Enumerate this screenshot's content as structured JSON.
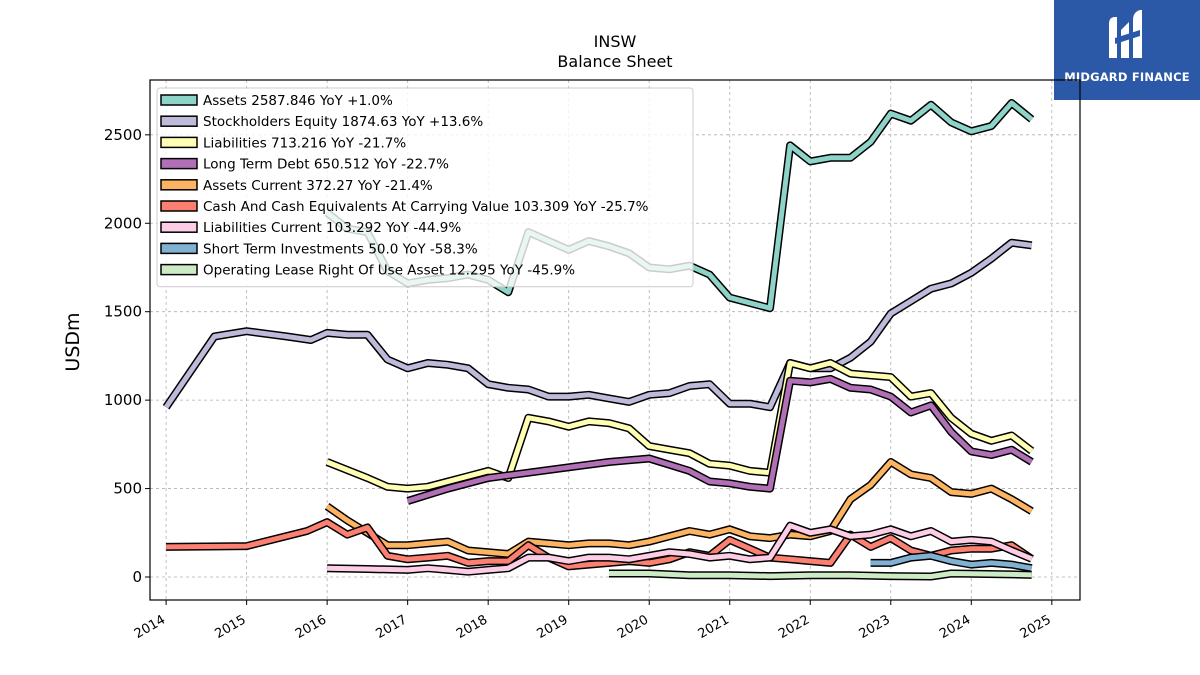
{
  "brand": {
    "name": "MIDGARD FINANCE",
    "bg_color": "#2c58a8"
  },
  "chart_data": {
    "type": "line",
    "title": "INSW",
    "subtitle": "Balance  Sheet",
    "ylabel": "USDm",
    "xlabel": "",
    "xlim": [
      2013.8,
      2025.35
    ],
    "ylim": [
      -130,
      2810
    ],
    "yticks": [
      0,
      500,
      1000,
      1500,
      2000,
      2500
    ],
    "xticks": [
      2014,
      2015,
      2016,
      2017,
      2018,
      2019,
      2020,
      2021,
      2022,
      2023,
      2024,
      2025
    ],
    "grid": true,
    "legend_position": "top-left",
    "series": [
      {
        "name": "Assets",
        "legend": "Assets  2587.846 YoY +1.0%",
        "color": "#8dd3c7",
        "points": [
          [
            2016.0,
            2060
          ],
          [
            2016.25,
            1970
          ],
          [
            2016.5,
            1950
          ],
          [
            2016.75,
            1730
          ],
          [
            2017.0,
            1660
          ],
          [
            2017.25,
            1680
          ],
          [
            2017.5,
            1690
          ],
          [
            2017.75,
            1710
          ],
          [
            2018.0,
            1680
          ],
          [
            2018.25,
            1610
          ],
          [
            2018.5,
            1950
          ],
          [
            2018.75,
            1900
          ],
          [
            2019.0,
            1850
          ],
          [
            2019.25,
            1900
          ],
          [
            2019.5,
            1870
          ],
          [
            2019.75,
            1830
          ],
          [
            2020.0,
            1750
          ],
          [
            2020.25,
            1740
          ],
          [
            2020.5,
            1760
          ],
          [
            2020.75,
            1710
          ],
          [
            2021.0,
            1580
          ],
          [
            2021.25,
            1550
          ],
          [
            2021.5,
            1520
          ],
          [
            2021.75,
            2440
          ],
          [
            2022.0,
            2350
          ],
          [
            2022.25,
            2370
          ],
          [
            2022.5,
            2370
          ],
          [
            2022.75,
            2460
          ],
          [
            2023.0,
            2620
          ],
          [
            2023.25,
            2580
          ],
          [
            2023.5,
            2670
          ],
          [
            2023.75,
            2570
          ],
          [
            2024.0,
            2520
          ],
          [
            2024.25,
            2550
          ],
          [
            2024.5,
            2680
          ],
          [
            2024.75,
            2588
          ]
        ]
      },
      {
        "name": "Stockholders Equity",
        "legend": "Stockholders Equity  1874.63 YoY +13.6%",
        "color": "#bebada",
        "points": [
          [
            2014.0,
            960
          ],
          [
            2014.6,
            1360
          ],
          [
            2015.0,
            1390
          ],
          [
            2015.5,
            1360
          ],
          [
            2015.8,
            1340
          ],
          [
            2016.0,
            1380
          ],
          [
            2016.25,
            1370
          ],
          [
            2016.5,
            1370
          ],
          [
            2016.75,
            1230
          ],
          [
            2017.0,
            1180
          ],
          [
            2017.25,
            1210
          ],
          [
            2017.5,
            1200
          ],
          [
            2017.75,
            1180
          ],
          [
            2018.0,
            1090
          ],
          [
            2018.25,
            1070
          ],
          [
            2018.5,
            1060
          ],
          [
            2018.75,
            1020
          ],
          [
            2019.0,
            1020
          ],
          [
            2019.25,
            1030
          ],
          [
            2019.5,
            1010
          ],
          [
            2019.75,
            990
          ],
          [
            2020.0,
            1030
          ],
          [
            2020.25,
            1040
          ],
          [
            2020.5,
            1080
          ],
          [
            2020.75,
            1090
          ],
          [
            2021.0,
            980
          ],
          [
            2021.25,
            980
          ],
          [
            2021.5,
            960
          ],
          [
            2021.75,
            1210
          ],
          [
            2022.0,
            1180
          ],
          [
            2022.25,
            1180
          ],
          [
            2022.5,
            1240
          ],
          [
            2022.75,
            1330
          ],
          [
            2023.0,
            1490
          ],
          [
            2023.25,
            1560
          ],
          [
            2023.5,
            1630
          ],
          [
            2023.75,
            1660
          ],
          [
            2024.0,
            1720
          ],
          [
            2024.25,
            1800
          ],
          [
            2024.5,
            1890
          ],
          [
            2024.75,
            1875
          ]
        ]
      },
      {
        "name": "Liabilities",
        "legend": "Liabilities  713.216 YoY -21.7%",
        "color": "#ffffb3",
        "points": [
          [
            2016.0,
            650
          ],
          [
            2016.5,
            560
          ],
          [
            2016.75,
            510
          ],
          [
            2017.0,
            500
          ],
          [
            2017.25,
            510
          ],
          [
            2017.5,
            540
          ],
          [
            2017.75,
            570
          ],
          [
            2018.0,
            600
          ],
          [
            2018.25,
            560
          ],
          [
            2018.5,
            900
          ],
          [
            2018.75,
            880
          ],
          [
            2019.0,
            850
          ],
          [
            2019.25,
            880
          ],
          [
            2019.5,
            870
          ],
          [
            2019.75,
            840
          ],
          [
            2020.0,
            740
          ],
          [
            2020.25,
            720
          ],
          [
            2020.5,
            700
          ],
          [
            2020.75,
            640
          ],
          [
            2021.0,
            630
          ],
          [
            2021.25,
            600
          ],
          [
            2021.5,
            590
          ],
          [
            2021.75,
            1210
          ],
          [
            2022.0,
            1180
          ],
          [
            2022.25,
            1210
          ],
          [
            2022.5,
            1150
          ],
          [
            2022.75,
            1140
          ],
          [
            2023.0,
            1130
          ],
          [
            2023.25,
            1020
          ],
          [
            2023.5,
            1040
          ],
          [
            2023.75,
            900
          ],
          [
            2024.0,
            810
          ],
          [
            2024.25,
            770
          ],
          [
            2024.5,
            800
          ],
          [
            2024.75,
            713
          ]
        ]
      },
      {
        "name": "Long Term Debt",
        "legend": "Long Term Debt  650.512 YoY -22.7%",
        "color": "#b16fb5",
        "points": [
          [
            2017.0,
            430
          ],
          [
            2017.5,
            500
          ],
          [
            2018.0,
            560
          ],
          [
            2018.5,
            590
          ],
          [
            2019.0,
            620
          ],
          [
            2019.5,
            650
          ],
          [
            2020.0,
            670
          ],
          [
            2020.5,
            600
          ],
          [
            2020.75,
            540
          ],
          [
            2021.0,
            530
          ],
          [
            2021.25,
            510
          ],
          [
            2021.5,
            500
          ],
          [
            2021.75,
            1110
          ],
          [
            2022.0,
            1100
          ],
          [
            2022.25,
            1120
          ],
          [
            2022.5,
            1070
          ],
          [
            2022.75,
            1060
          ],
          [
            2023.0,
            1020
          ],
          [
            2023.25,
            930
          ],
          [
            2023.5,
            970
          ],
          [
            2023.75,
            820
          ],
          [
            2024.0,
            710
          ],
          [
            2024.25,
            690
          ],
          [
            2024.5,
            720
          ],
          [
            2024.75,
            651
          ]
        ]
      },
      {
        "name": "Assets Current",
        "legend": "Assets Current  372.27 YoY -21.4%",
        "color": "#fdb462",
        "points": [
          [
            2016.0,
            400
          ],
          [
            2016.25,
            320
          ],
          [
            2016.5,
            250
          ],
          [
            2016.75,
            180
          ],
          [
            2017.0,
            180
          ],
          [
            2017.25,
            190
          ],
          [
            2017.5,
            200
          ],
          [
            2017.75,
            150
          ],
          [
            2018.0,
            140
          ],
          [
            2018.25,
            130
          ],
          [
            2018.5,
            200
          ],
          [
            2018.75,
            190
          ],
          [
            2019.0,
            180
          ],
          [
            2019.25,
            190
          ],
          [
            2019.5,
            190
          ],
          [
            2019.75,
            180
          ],
          [
            2020.0,
            200
          ],
          [
            2020.25,
            230
          ],
          [
            2020.5,
            260
          ],
          [
            2020.75,
            240
          ],
          [
            2021.0,
            270
          ],
          [
            2021.25,
            230
          ],
          [
            2021.5,
            220
          ],
          [
            2021.75,
            240
          ],
          [
            2022.0,
            230
          ],
          [
            2022.25,
            260
          ],
          [
            2022.5,
            440
          ],
          [
            2022.75,
            520
          ],
          [
            2023.0,
            650
          ],
          [
            2023.25,
            580
          ],
          [
            2023.5,
            560
          ],
          [
            2023.75,
            480
          ],
          [
            2024.0,
            470
          ],
          [
            2024.25,
            500
          ],
          [
            2024.5,
            440
          ],
          [
            2024.75,
            372
          ]
        ]
      },
      {
        "name": "Cash And Cash Equivalents At Carrying Value",
        "legend": "Cash And Cash Equivalents At Carrying Value  103.309 YoY -25.7%",
        "color": "#fb8072",
        "points": [
          [
            2014.0,
            170
          ],
          [
            2015.0,
            175
          ],
          [
            2015.75,
            260
          ],
          [
            2016.0,
            310
          ],
          [
            2016.25,
            240
          ],
          [
            2016.5,
            280
          ],
          [
            2016.75,
            120
          ],
          [
            2017.0,
            100
          ],
          [
            2017.25,
            110
          ],
          [
            2017.5,
            120
          ],
          [
            2017.75,
            80
          ],
          [
            2018.0,
            90
          ],
          [
            2018.25,
            90
          ],
          [
            2018.5,
            180
          ],
          [
            2018.75,
            110
          ],
          [
            2019.0,
            60
          ],
          [
            2019.25,
            70
          ],
          [
            2019.5,
            80
          ],
          [
            2019.75,
            90
          ],
          [
            2020.0,
            80
          ],
          [
            2020.25,
            100
          ],
          [
            2020.5,
            140
          ],
          [
            2020.75,
            120
          ],
          [
            2021.0,
            210
          ],
          [
            2021.25,
            160
          ],
          [
            2021.5,
            110
          ],
          [
            2021.75,
            100
          ],
          [
            2022.0,
            90
          ],
          [
            2022.25,
            80
          ],
          [
            2022.5,
            240
          ],
          [
            2022.75,
            170
          ],
          [
            2023.0,
            220
          ],
          [
            2023.25,
            150
          ],
          [
            2023.5,
            120
          ],
          [
            2023.75,
            150
          ],
          [
            2024.0,
            160
          ],
          [
            2024.25,
            160
          ],
          [
            2024.5,
            180
          ],
          [
            2024.75,
            103
          ]
        ]
      },
      {
        "name": "Liabilities Current",
        "legend": "Liabilities Current  103.292 YoY -44.9%",
        "color": "#fccde5",
        "points": [
          [
            2016.0,
            50
          ],
          [
            2016.5,
            45
          ],
          [
            2017.0,
            40
          ],
          [
            2017.25,
            50
          ],
          [
            2017.5,
            40
          ],
          [
            2017.75,
            30
          ],
          [
            2018.0,
            40
          ],
          [
            2018.25,
            50
          ],
          [
            2018.5,
            110
          ],
          [
            2018.75,
            110
          ],
          [
            2019.0,
            90
          ],
          [
            2019.25,
            110
          ],
          [
            2019.5,
            110
          ],
          [
            2019.75,
            100
          ],
          [
            2020.0,
            120
          ],
          [
            2020.25,
            140
          ],
          [
            2020.5,
            130
          ],
          [
            2020.75,
            110
          ],
          [
            2021.0,
            120
          ],
          [
            2021.25,
            100
          ],
          [
            2021.5,
            110
          ],
          [
            2021.75,
            290
          ],
          [
            2022.0,
            250
          ],
          [
            2022.25,
            270
          ],
          [
            2022.5,
            230
          ],
          [
            2022.75,
            240
          ],
          [
            2023.0,
            270
          ],
          [
            2023.25,
            230
          ],
          [
            2023.5,
            260
          ],
          [
            2023.75,
            200
          ],
          [
            2024.0,
            210
          ],
          [
            2024.25,
            200
          ],
          [
            2024.5,
            150
          ],
          [
            2024.75,
            103
          ]
        ]
      },
      {
        "name": "Short Term Investments",
        "legend": "Short Term Investments  50.0 YoY -58.3%",
        "color": "#80b1d3",
        "points": [
          [
            2022.75,
            80
          ],
          [
            2023.0,
            80
          ],
          [
            2023.25,
            110
          ],
          [
            2023.5,
            120
          ],
          [
            2023.75,
            90
          ],
          [
            2024.0,
            70
          ],
          [
            2024.25,
            80
          ],
          [
            2024.5,
            70
          ],
          [
            2024.75,
            50
          ]
        ]
      },
      {
        "name": "Operating Lease Right Of Use Asset",
        "legend": "Operating Lease Right Of Use Asset  12.295 YoY -45.9%",
        "color": "#ccebc5",
        "points": [
          [
            2019.5,
            20
          ],
          [
            2020.0,
            20
          ],
          [
            2020.5,
            10
          ],
          [
            2021.0,
            10
          ],
          [
            2021.5,
            5
          ],
          [
            2022.0,
            10
          ],
          [
            2022.5,
            10
          ],
          [
            2023.0,
            5
          ],
          [
            2023.5,
            3
          ],
          [
            2023.75,
            20
          ],
          [
            2024.0,
            18
          ],
          [
            2024.5,
            15
          ],
          [
            2024.75,
            12
          ]
        ]
      }
    ]
  }
}
